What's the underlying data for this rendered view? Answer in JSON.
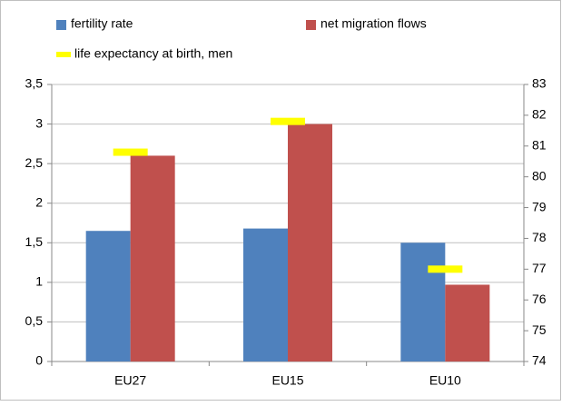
{
  "chart_data": {
    "type": "bar",
    "categories": [
      "EU27",
      "EU15",
      "EU10"
    ],
    "series": [
      {
        "name": "fertility rate",
        "color": "#4f81bd",
        "values": [
          1.65,
          1.68,
          1.5
        ]
      },
      {
        "name": "net migration flows",
        "color": "#c0504d",
        "values": [
          2.6,
          3.0,
          0.97
        ]
      },
      {
        "name": "life expectancy at birth, men",
        "color": "#ffff00",
        "values": [
          80.8,
          81.8,
          77.0
        ],
        "axis": "y2"
      }
    ],
    "ylim": [
      0,
      3.5
    ],
    "yticks": [
      0,
      {
        "value": 0.5,
        "label": "0,5"
      },
      1,
      {
        "value": 1.5,
        "label": "1,5"
      },
      2,
      {
        "value": 2.5,
        "label": "2,5"
      },
      3,
      {
        "value": 3.5,
        "label": "3,5"
      }
    ],
    "y2lim": [
      74,
      83
    ],
    "y2ticks": [
      74,
      75,
      76,
      77,
      78,
      79,
      80,
      81,
      82,
      83
    ],
    "grid": true,
    "legend": "top"
  }
}
